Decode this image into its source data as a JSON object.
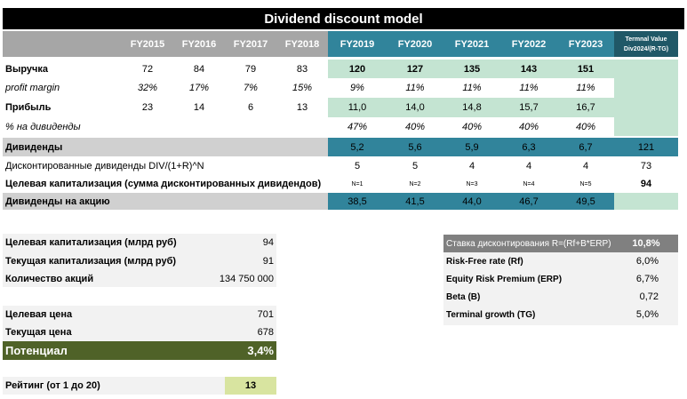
{
  "title": "Dividend discount model",
  "years": [
    "FY2015",
    "FY2016",
    "FY2017",
    "FY2018",
    "FY2019",
    "FY2020",
    "FY2021",
    "FY2022",
    "FY2023"
  ],
  "terminal_header": [
    "Termnal Value",
    "Div2024/(R-TG)"
  ],
  "rows": {
    "revenue": {
      "label": "Выручка",
      "values": [
        "72",
        "84",
        "79",
        "83",
        "120",
        "127",
        "135",
        "143",
        "151"
      ]
    },
    "margin": {
      "label": "profit margin",
      "values": [
        "32%",
        "17%",
        "7%",
        "15%",
        "9%",
        "11%",
        "11%",
        "11%",
        "11%"
      ]
    },
    "profit": {
      "label": "Прибыль",
      "values": [
        "23",
        "14",
        "6",
        "13",
        "11,0",
        "14,0",
        "14,8",
        "15,7",
        "16,7"
      ]
    },
    "payout": {
      "label": "% на дивиденды",
      "values": [
        "47%",
        "40%",
        "40%",
        "40%",
        "40%"
      ]
    },
    "dividends": {
      "label": "Дивиденды",
      "values": [
        "5,2",
        "5,6",
        "5,9",
        "6,3",
        "6,7"
      ],
      "terminal": "121"
    },
    "discounted": {
      "label": "Дисконтированные дивиденды DIV/(1+R)^N",
      "values": [
        "5",
        "5",
        "4",
        "4",
        "4"
      ],
      "terminal": "73"
    },
    "target_cap_row": {
      "label": "Целевая капитализация (сумма дисконтированных дивидендов)",
      "values": [
        "N=1",
        "N=2",
        "N=3",
        "N=4",
        "N=5"
      ],
      "terminal": "94"
    },
    "dps": {
      "label": "Дивиденды на акцию",
      "values": [
        "38,5",
        "41,5",
        "44,0",
        "46,7",
        "49,5"
      ]
    }
  },
  "summary": {
    "target_cap": {
      "label": "Целевая капитализация (млрд руб)",
      "value": "94"
    },
    "current_cap": {
      "label": "Текущая капитализация (млрд руб)",
      "value": "91"
    },
    "shares": {
      "label": "Количество акций",
      "value": "134 750 000"
    },
    "target_price": {
      "label": "Целевая цена",
      "value": "701"
    },
    "current_price": {
      "label": "Текущая цена",
      "value": "678"
    },
    "potential": {
      "label": "Потенциал",
      "value": "3,4%"
    },
    "rating": {
      "label": "Рейтинг (от 1 до 20)",
      "value": "13"
    }
  },
  "rates": {
    "discount": {
      "label": "Ставка дисконтирования R=(Rf+B*ERP)",
      "value": "10,8%"
    },
    "rf": {
      "label": "Risk-Free rate (Rf)",
      "value": "6,0%"
    },
    "erp": {
      "label": "Equity Risk Premium (ERP)",
      "value": "6,7%"
    },
    "beta": {
      "label": "Beta (B)",
      "value": "0,72"
    },
    "tg": {
      "label": "Terminal growth (TG)",
      "value": "5,0%"
    }
  }
}
